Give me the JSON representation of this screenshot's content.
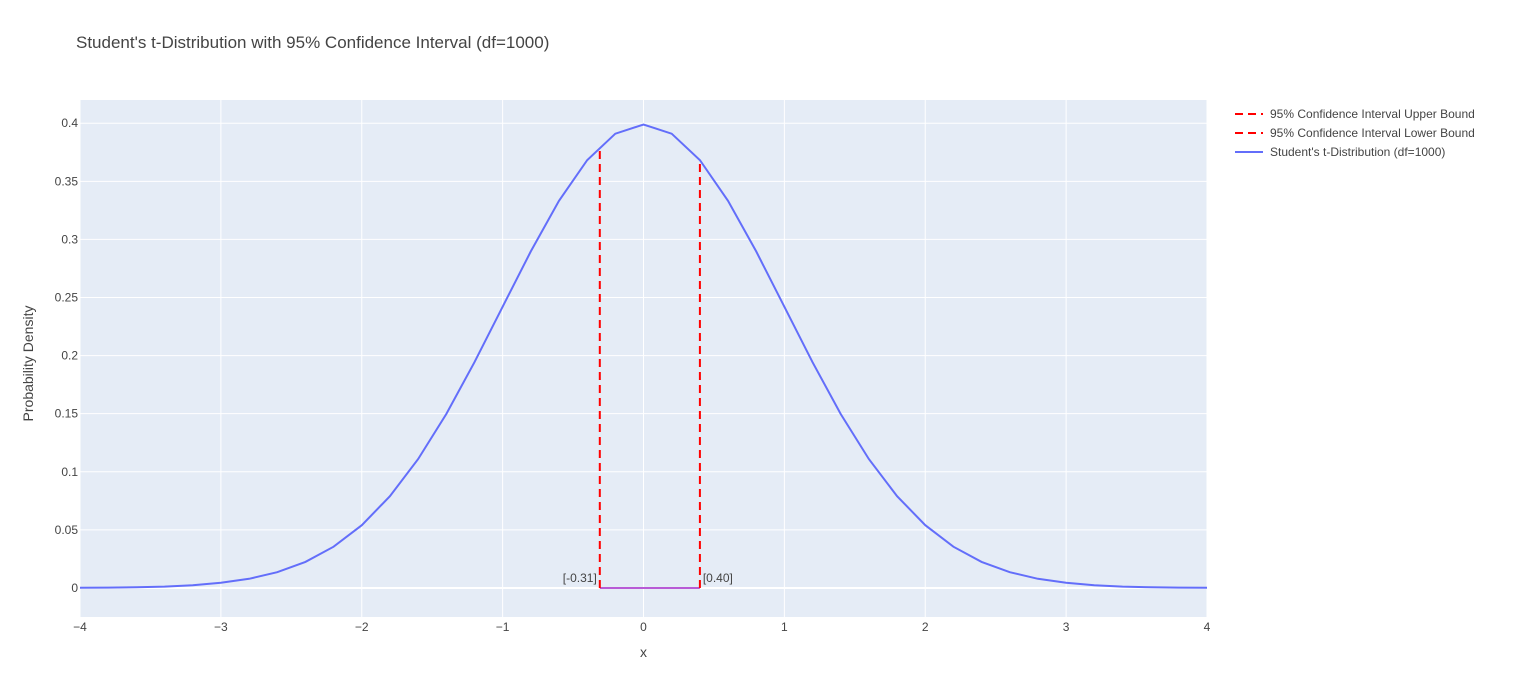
{
  "chart_data": {
    "type": "line",
    "title": "Student's t-Distribution with 95% Confidence Interval (df=1000)",
    "xlabel": "x",
    "ylabel": "Probability Density",
    "xlim": [
      -4,
      4
    ],
    "ylim": [
      -0.025,
      0.42
    ],
    "x_ticks": [
      -4,
      -3,
      -2,
      -1,
      0,
      1,
      2,
      3,
      4
    ],
    "x_tick_labels": [
      "−4",
      "−3",
      "−2",
      "−1",
      "0",
      "1",
      "2",
      "3",
      "4"
    ],
    "y_ticks": [
      0,
      0.05,
      0.1,
      0.15,
      0.2,
      0.25,
      0.3,
      0.35,
      0.4
    ],
    "y_tick_labels": [
      "0",
      "0.05",
      "0.1",
      "0.15",
      "0.2",
      "0.25",
      "0.3",
      "0.35",
      "0.4"
    ],
    "grid": true,
    "legend_position": "top-right, outside plot",
    "series": [
      {
        "name": "95% Confidence Interval Upper Bound",
        "style": "dashed",
        "color": "#ff0000",
        "x": [
          0.4,
          0.4
        ],
        "y": [
          0,
          0.368
        ]
      },
      {
        "name": "95% Confidence Interval Lower Bound",
        "style": "dashed",
        "color": "#ff0000",
        "x": [
          -0.31,
          -0.31
        ],
        "y": [
          0,
          0.38
        ]
      },
      {
        "name": "Student's t-Distribution (df=1000)",
        "style": "solid",
        "color": "#636efa",
        "x": [
          -4.0,
          -3.8,
          -3.6,
          -3.4,
          -3.2,
          -3.0,
          -2.8,
          -2.6,
          -2.4,
          -2.2,
          -2.0,
          -1.8,
          -1.6,
          -1.4,
          -1.2,
          -1.0,
          -0.8,
          -0.6,
          -0.4,
          -0.2,
          0.0,
          0.2,
          0.4,
          0.6,
          0.8,
          1.0,
          1.2,
          1.4,
          1.6,
          1.8,
          2.0,
          2.2,
          2.4,
          2.6,
          2.8,
          3.0,
          3.2,
          3.4,
          3.6,
          3.8,
          4.0
        ],
        "y": [
          0.0001,
          0.0003,
          0.0006,
          0.0012,
          0.0024,
          0.0044,
          0.0079,
          0.0136,
          0.0224,
          0.0355,
          0.054,
          0.079,
          0.1109,
          0.1497,
          0.1942,
          0.242,
          0.2897,
          0.3332,
          0.3683,
          0.391,
          0.3989,
          0.391,
          0.3683,
          0.3332,
          0.2897,
          0.242,
          0.1942,
          0.1497,
          0.1109,
          0.079,
          0.054,
          0.0355,
          0.0224,
          0.0136,
          0.0079,
          0.0044,
          0.0024,
          0.0012,
          0.0006,
          0.0003,
          0.0001
        ]
      }
    ],
    "shaded_interval": {
      "x": [
        -0.31,
        0.4
      ],
      "y": 0,
      "color": "#b85bd6"
    },
    "annotations": [
      {
        "text": "[-0.31]",
        "x": -0.31,
        "y": 0,
        "side": "left"
      },
      {
        "text": "[0.40]",
        "x": 0.4,
        "y": 0,
        "side": "right"
      }
    ]
  }
}
